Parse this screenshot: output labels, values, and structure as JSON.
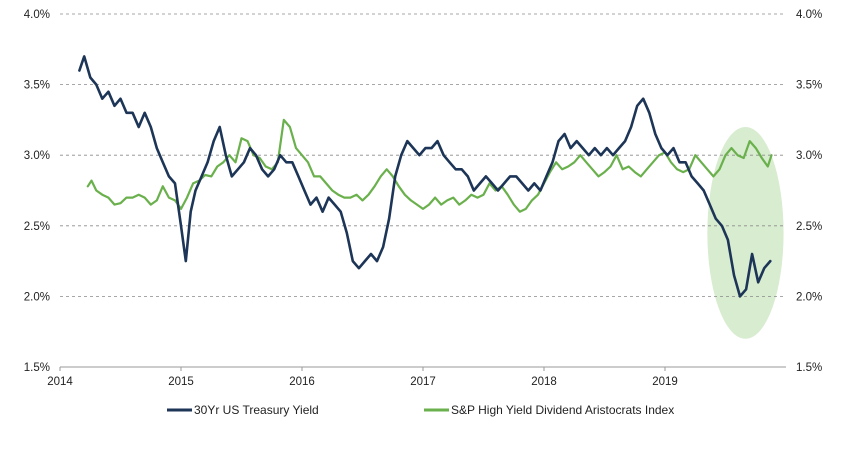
{
  "chart_data": {
    "type": "line",
    "x_ticks": [
      "2014",
      "2015",
      "2016",
      "2017",
      "2018",
      "2019"
    ],
    "y_left_ticks": [
      "4.0%",
      "3.5%",
      "3.0%",
      "2.5%",
      "2.0%",
      "1.5%"
    ],
    "y_right_ticks": [
      "4.0%",
      "3.5%",
      "3.0%",
      "2.5%",
      "2.0%",
      "1.5%"
    ],
    "ylim": [
      1.5,
      4.0
    ],
    "xlim": [
      2014.0,
      2020.0
    ],
    "grid": "horizontal-dashed",
    "legend_position": "bottom",
    "highlight_ellipse": {
      "x_range": [
        2019.35,
        2019.98
      ],
      "y_range": [
        1.7,
        3.2
      ],
      "color": "#d8ecd0"
    },
    "series": [
      {
        "name": "30Yr US Treasury Yield",
        "color": "#1d3557",
        "x": [
          2014.16,
          2014.2,
          2014.25,
          2014.3,
          2014.35,
          2014.4,
          2014.45,
          2014.5,
          2014.55,
          2014.6,
          2014.65,
          2014.7,
          2014.75,
          2014.8,
          2014.85,
          2014.9,
          2014.95,
          2015.0,
          2015.04,
          2015.08,
          2015.12,
          2015.17,
          2015.22,
          2015.27,
          2015.32,
          2015.37,
          2015.42,
          2015.47,
          2015.52,
          2015.57,
          2015.62,
          2015.67,
          2015.72,
          2015.77,
          2015.82,
          2015.87,
          2015.92,
          2015.97,
          2016.02,
          2016.07,
          2016.12,
          2016.17,
          2016.22,
          2016.27,
          2016.32,
          2016.37,
          2016.42,
          2016.47,
          2016.52,
          2016.57,
          2016.62,
          2016.67,
          2016.72,
          2016.77,
          2016.82,
          2016.87,
          2016.92,
          2016.97,
          2017.02,
          2017.07,
          2017.12,
          2017.17,
          2017.22,
          2017.27,
          2017.32,
          2017.37,
          2017.42,
          2017.47,
          2017.52,
          2017.57,
          2017.62,
          2017.67,
          2017.72,
          2017.77,
          2017.82,
          2017.87,
          2017.92,
          2017.97,
          2018.02,
          2018.07,
          2018.12,
          2018.17,
          2018.22,
          2018.27,
          2018.32,
          2018.37,
          2018.42,
          2018.47,
          2018.52,
          2018.57,
          2018.62,
          2018.67,
          2018.72,
          2018.77,
          2018.82,
          2018.87,
          2018.92,
          2018.97,
          2019.02,
          2019.07,
          2019.12,
          2019.17,
          2019.22,
          2019.27,
          2019.32,
          2019.37,
          2019.42,
          2019.47,
          2019.52,
          2019.57,
          2019.62,
          2019.67,
          2019.72,
          2019.77,
          2019.82,
          2019.87
        ],
        "values": [
          3.6,
          3.7,
          3.55,
          3.5,
          3.4,
          3.45,
          3.35,
          3.4,
          3.3,
          3.3,
          3.2,
          3.3,
          3.2,
          3.05,
          2.95,
          2.85,
          2.8,
          2.5,
          2.25,
          2.6,
          2.75,
          2.85,
          2.95,
          3.1,
          3.2,
          3.0,
          2.85,
          2.9,
          2.95,
          3.05,
          3.0,
          2.9,
          2.85,
          2.9,
          3.0,
          2.95,
          2.95,
          2.85,
          2.75,
          2.65,
          2.7,
          2.6,
          2.7,
          2.65,
          2.6,
          2.45,
          2.25,
          2.2,
          2.25,
          2.3,
          2.25,
          2.35,
          2.55,
          2.85,
          3.0,
          3.1,
          3.05,
          3.0,
          3.05,
          3.05,
          3.1,
          3.0,
          2.95,
          2.9,
          2.9,
          2.85,
          2.75,
          2.8,
          2.85,
          2.8,
          2.75,
          2.8,
          2.85,
          2.85,
          2.8,
          2.75,
          2.8,
          2.75,
          2.85,
          2.95,
          3.1,
          3.15,
          3.05,
          3.1,
          3.05,
          3.0,
          3.05,
          3.0,
          3.05,
          3.0,
          3.05,
          3.1,
          3.2,
          3.35,
          3.4,
          3.3,
          3.15,
          3.05,
          3.0,
          3.05,
          2.95,
          2.95,
          2.85,
          2.8,
          2.75,
          2.65,
          2.55,
          2.5,
          2.4,
          2.15,
          2.0,
          2.05,
          2.3,
          2.1,
          2.2,
          2.25
        ]
      },
      {
        "name": "S&P High Yield Dividend Aristocrats Index",
        "color": "#6ab04c",
        "x": [
          2014.23,
          2014.26,
          2014.3,
          2014.35,
          2014.4,
          2014.45,
          2014.5,
          2014.55,
          2014.6,
          2014.65,
          2014.7,
          2014.75,
          2014.8,
          2014.85,
          2014.9,
          2014.95,
          2015.0,
          2015.05,
          2015.1,
          2015.15,
          2015.2,
          2015.25,
          2015.3,
          2015.35,
          2015.4,
          2015.45,
          2015.5,
          2015.55,
          2015.6,
          2015.65,
          2015.7,
          2015.75,
          2015.8,
          2015.85,
          2015.9,
          2015.95,
          2016.0,
          2016.05,
          2016.1,
          2016.15,
          2016.2,
          2016.25,
          2016.3,
          2016.35,
          2016.4,
          2016.45,
          2016.5,
          2016.55,
          2016.6,
          2016.65,
          2016.7,
          2016.75,
          2016.8,
          2016.85,
          2016.9,
          2016.95,
          2017.0,
          2017.05,
          2017.1,
          2017.15,
          2017.2,
          2017.25,
          2017.3,
          2017.35,
          2017.4,
          2017.45,
          2017.5,
          2017.55,
          2017.6,
          2017.65,
          2017.7,
          2017.75,
          2017.8,
          2017.85,
          2017.9,
          2017.95,
          2018.0,
          2018.05,
          2018.1,
          2018.15,
          2018.2,
          2018.25,
          2018.3,
          2018.35,
          2018.4,
          2018.45,
          2018.5,
          2018.55,
          2018.6,
          2018.65,
          2018.7,
          2018.75,
          2018.8,
          2018.85,
          2018.9,
          2018.95,
          2019.0,
          2019.05,
          2019.1,
          2019.15,
          2019.2,
          2019.25,
          2019.3,
          2019.35,
          2019.4,
          2019.45,
          2019.5,
          2019.55,
          2019.6,
          2019.65,
          2019.7,
          2019.75,
          2019.8,
          2019.85,
          2019.88
        ],
        "values": [
          2.78,
          2.82,
          2.75,
          2.72,
          2.7,
          2.65,
          2.66,
          2.7,
          2.7,
          2.72,
          2.7,
          2.65,
          2.68,
          2.78,
          2.7,
          2.68,
          2.62,
          2.7,
          2.8,
          2.82,
          2.86,
          2.85,
          2.92,
          2.95,
          3.0,
          2.95,
          3.12,
          3.1,
          3.0,
          2.98,
          2.92,
          2.9,
          2.95,
          3.25,
          3.2,
          3.05,
          3.0,
          2.95,
          2.85,
          2.85,
          2.8,
          2.75,
          2.72,
          2.7,
          2.7,
          2.72,
          2.68,
          2.72,
          2.78,
          2.85,
          2.9,
          2.85,
          2.78,
          2.72,
          2.68,
          2.65,
          2.62,
          2.65,
          2.7,
          2.65,
          2.68,
          2.7,
          2.65,
          2.68,
          2.72,
          2.7,
          2.72,
          2.8,
          2.75,
          2.78,
          2.72,
          2.65,
          2.6,
          2.62,
          2.68,
          2.72,
          2.8,
          2.88,
          2.95,
          2.9,
          2.92,
          2.95,
          3.0,
          2.95,
          2.9,
          2.85,
          2.88,
          2.92,
          3.0,
          2.9,
          2.92,
          2.88,
          2.85,
          2.9,
          2.95,
          3.0,
          3.02,
          2.95,
          2.9,
          2.88,
          2.9,
          3.0,
          2.95,
          2.9,
          2.85,
          2.9,
          3.0,
          3.05,
          3.0,
          2.98,
          3.1,
          3.05,
          2.98,
          2.92,
          3.0
        ]
      }
    ]
  }
}
